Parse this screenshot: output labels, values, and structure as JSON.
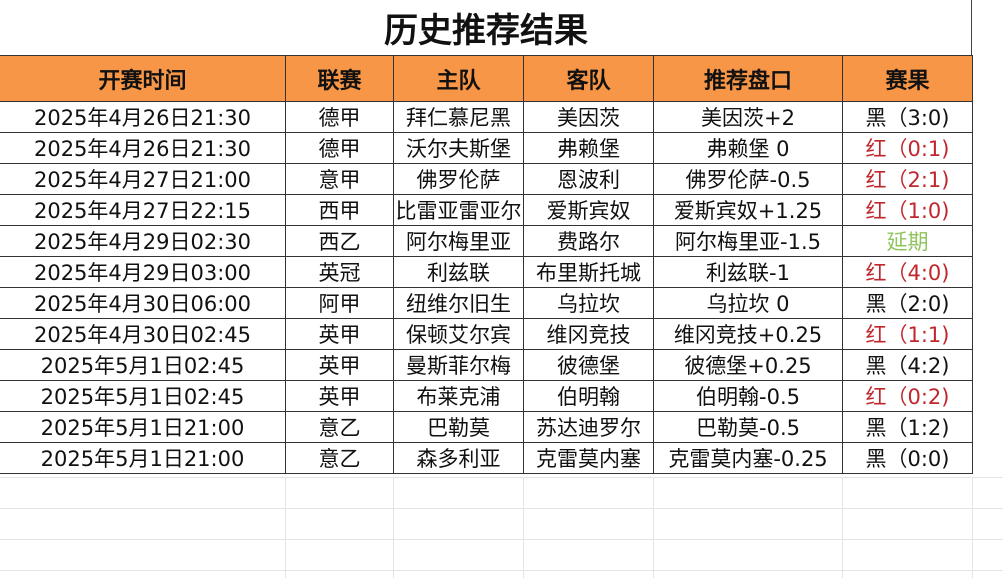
{
  "title": "历史推荐结果",
  "headers": [
    "开赛时间",
    "联赛",
    "主队",
    "客队",
    "推荐盘口",
    "赛果"
  ],
  "rows": [
    {
      "time": "2025年4月26日21:30",
      "league": "德甲",
      "home": "拜仁慕尼黑",
      "away": "美因茨",
      "pick": "美因茨+2",
      "result": "黑（3:0)",
      "status": "black"
    },
    {
      "time": "2025年4月26日21:30",
      "league": "德甲",
      "home": "沃尔夫斯堡",
      "away": "弗赖堡",
      "pick": "弗赖堡 0",
      "result": "红（0:1)",
      "status": "red"
    },
    {
      "time": "2025年4月27日21:00",
      "league": "意甲",
      "home": "佛罗伦萨",
      "away": "恩波利",
      "pick": "佛罗伦萨-0.5",
      "result": "红（2:1)",
      "status": "red"
    },
    {
      "time": "2025年4月27日22:15",
      "league": "西甲",
      "home": "比雷亚雷亚尔",
      "away": "爱斯宾奴",
      "pick": "爱斯宾奴+1.25",
      "result": "红（1:0)",
      "status": "red"
    },
    {
      "time": "2025年4月29日02:30",
      "league": "西乙",
      "home": "阿尔梅里亚",
      "away": "费路尔",
      "pick": "阿尔梅里亚-1.5",
      "result": "延期",
      "status": "postponed"
    },
    {
      "time": "2025年4月29日03:00",
      "league": "英冠",
      "home": "利兹联",
      "away": "布里斯托城",
      "pick": "利兹联-1",
      "result": "红（4:0)",
      "status": "red"
    },
    {
      "time": "2025年4月30日06:00",
      "league": "阿甲",
      "home": "纽维尔旧生",
      "away": "乌拉坎",
      "pick": "乌拉坎 0",
      "result": "黑（2:0)",
      "status": "black"
    },
    {
      "time": "2025年4月30日02:45",
      "league": "英甲",
      "home": "保顿艾尔宾",
      "away": "维冈竞技",
      "pick": "维冈竞技+0.25",
      "result": "红（1:1)",
      "status": "red"
    },
    {
      "time": "2025年5月1日02:45",
      "league": "英甲",
      "home": "曼斯菲尔梅",
      "away": "彼德堡",
      "pick": "彼德堡+0.25",
      "result": "黑（4:2)",
      "status": "black"
    },
    {
      "time": "2025年5月1日02:45",
      "league": "英甲",
      "home": "布莱克浦",
      "away": "伯明翰",
      "pick": "伯明翰-0.5",
      "result": "红（0:2)",
      "status": "red"
    },
    {
      "time": "2025年5月1日21:00",
      "league": "意乙",
      "home": "巴勒莫",
      "away": "苏达迪罗尔",
      "pick": "巴勒莫-0.5",
      "result": "黑（1:2)",
      "status": "black"
    },
    {
      "time": "2025年5月1日21:00",
      "league": "意乙",
      "home": "森多利亚",
      "away": "克雷莫内塞",
      "pick": "克雷莫内塞-0.25",
      "result": "黑（0:0)",
      "status": "black"
    }
  ],
  "colors": {
    "header_bg": "#f79646",
    "red": "#c0272d",
    "postponed": "#8fc45a",
    "black": "#111111"
  }
}
